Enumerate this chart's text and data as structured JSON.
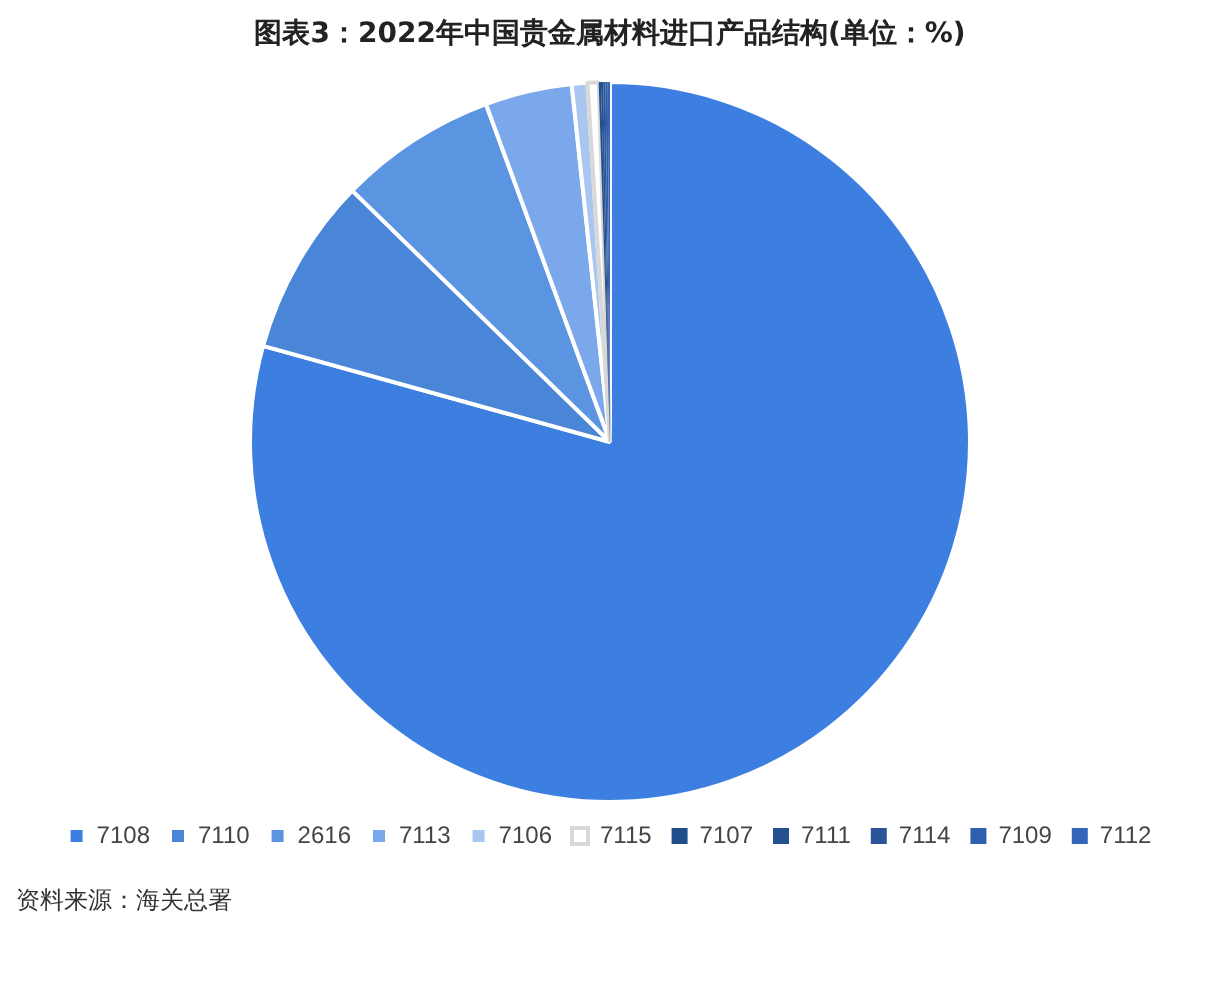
{
  "chart_data": {
    "type": "pie",
    "title": "图表3：2022年中国贵金属材料进口产品结构(单位：%)",
    "categories": [
      "7108",
      "7110",
      "2616",
      "7113",
      "7106",
      "7115",
      "7107",
      "7111",
      "7114",
      "7109",
      "7112"
    ],
    "values": [
      79.3,
      8.0,
      7.1,
      3.9,
      0.7,
      0.5,
      0.1,
      0.1,
      0.1,
      0.1,
      0.1
    ],
    "colors": [
      "#3d7fe0",
      "#4a86d8",
      "#5b94e0",
      "#7aa8ea",
      "#a8c6f0",
      "#ffffff",
      "#1f4e8c",
      "#24508f",
      "#2a5598",
      "#2e5fae",
      "#3366bb"
    ],
    "legend": "bottom",
    "annotations": [
      "资料来源：海关总署"
    ]
  }
}
